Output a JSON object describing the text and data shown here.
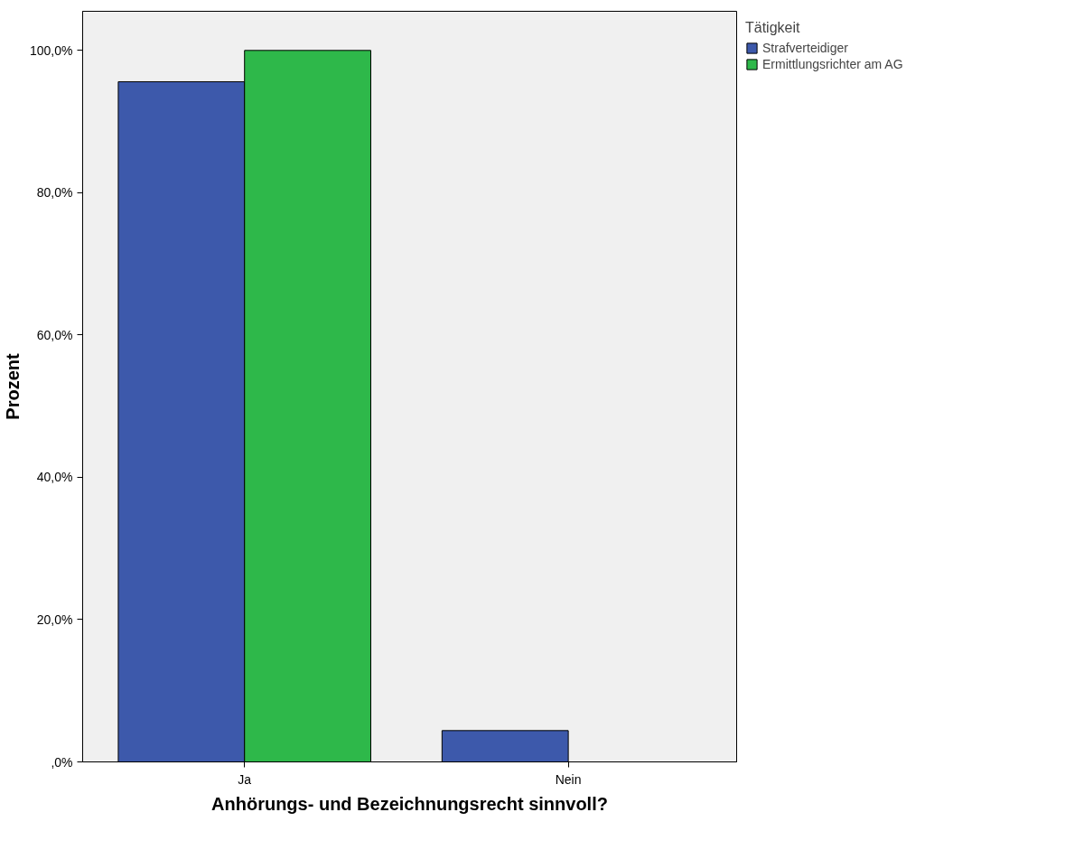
{
  "chart_data": {
    "type": "bar",
    "xlabel": "Anhörungs- und Bezeichnungsrecht sinnvoll?",
    "ylabel": "Prozent",
    "legend_title": "Tätigkeit",
    "categories": [
      "Ja",
      "Nein"
    ],
    "series": [
      {
        "name": "Strafverteidiger",
        "color": "#3d59ab",
        "values": [
          95.6,
          4.4
        ]
      },
      {
        "name": "Ermittlungsrichter am AG",
        "color": "#2eb84a",
        "values": [
          100,
          null
        ]
      }
    ],
    "ylim": [
      0,
      105.5
    ],
    "yticks": [
      {
        "value": 0,
        "label": ",0%"
      },
      {
        "value": 20,
        "label": "20,0%"
      },
      {
        "value": 40,
        "label": "40,0%"
      },
      {
        "value": 60,
        "label": "60,0%"
      },
      {
        "value": 80,
        "label": "80,0%"
      },
      {
        "value": 100,
        "label": "100,0%"
      }
    ],
    "grid": false,
    "legend": "top right"
  }
}
